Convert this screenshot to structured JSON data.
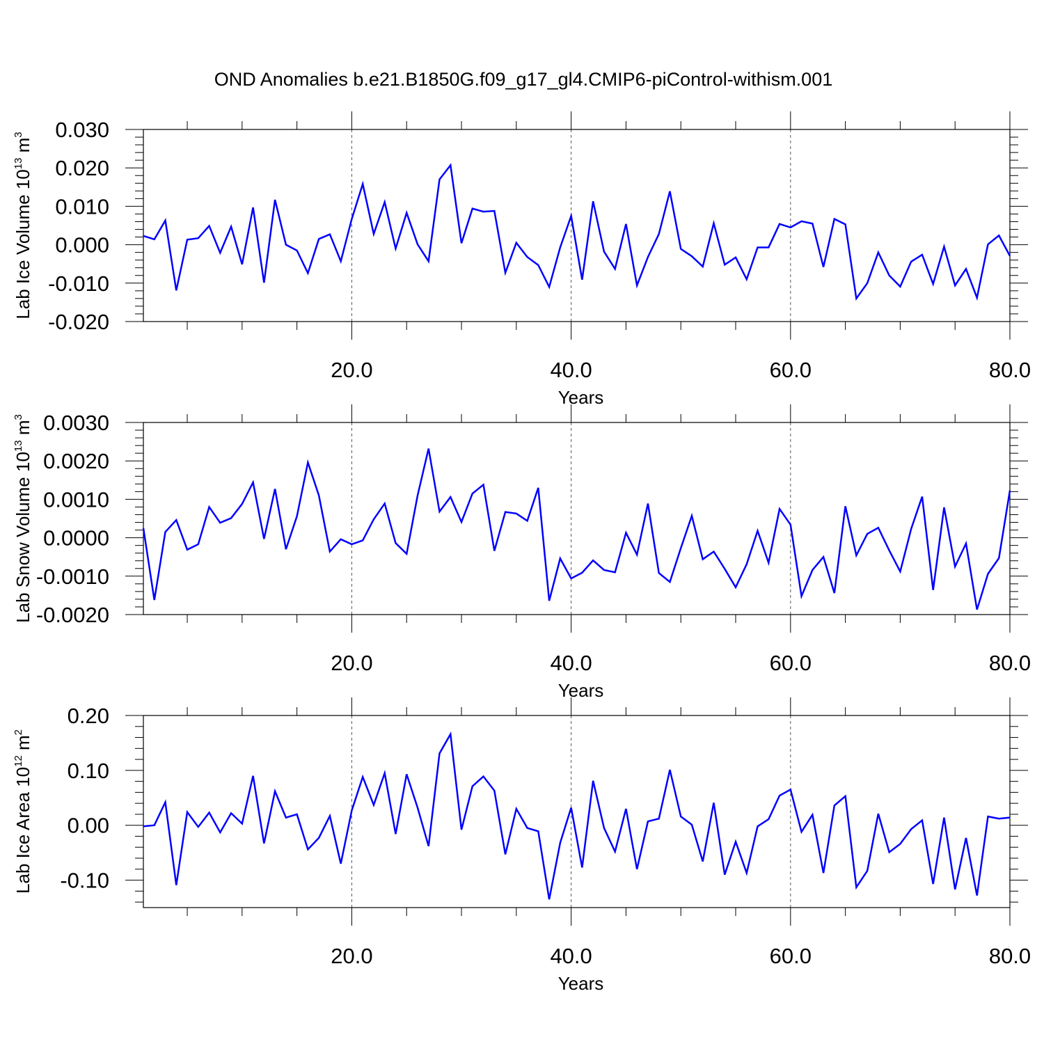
{
  "title": "OND Anomalies b.e21.B1850G.f09_g17_gl4.CMIP6-piControl-withism.001",
  "colors": {
    "line": "#0000ff",
    "axis": "#000000",
    "grid": "#555555",
    "background": "#ffffff"
  },
  "chart_data": [
    {
      "type": "line",
      "xlabel": "Years",
      "ylabel": {
        "main": "Lab Ice Volume 10",
        "exponent": "13",
        "unit": " m",
        "unit_exponent": "3"
      },
      "xlim": [
        1,
        80
      ],
      "ylim": [
        -0.02,
        0.03
      ],
      "xticks": [
        20,
        40,
        60,
        80
      ],
      "xtick_labels": [
        "20.0",
        "40.0",
        "60.0",
        "80.0"
      ],
      "yticks": [
        -0.02,
        -0.01,
        0.0,
        0.01,
        0.02,
        0.03
      ],
      "ytick_labels": [
        "-0.020",
        "-0.010",
        "0.000",
        "0.010",
        "0.020",
        "0.030"
      ],
      "x_minor_step": 5,
      "y_minor_step": 0.002,
      "grid": "vertical-dashed-at-major-x",
      "series": [
        {
          "x": [
            1,
            2,
            3,
            4,
            5,
            6,
            7,
            8,
            9,
            10,
            11,
            12,
            13,
            14,
            15,
            16,
            17,
            18,
            19,
            20,
            21,
            22,
            23,
            24,
            25,
            26,
            27,
            28,
            29,
            30,
            31,
            32,
            33,
            34,
            35,
            36,
            37,
            38,
            39,
            40,
            41,
            42,
            43,
            44,
            45,
            46,
            47,
            48,
            49,
            50,
            51,
            52,
            53,
            54,
            55,
            56,
            57,
            58,
            59,
            60,
            61,
            62,
            63,
            64,
            65,
            66,
            67,
            68,
            69,
            70,
            71,
            72,
            73,
            74,
            75,
            76,
            77,
            78,
            79,
            80
          ],
          "values": [
            0.0023,
            0.0014,
            0.0063,
            -0.0119,
            0.0013,
            0.0017,
            0.0049,
            -0.0021,
            0.0047,
            -0.0051,
            0.0097,
            -0.0099,
            0.0117,
            0.0,
            -0.0015,
            -0.0074,
            0.0015,
            0.0027,
            -0.0043,
            0.0067,
            0.0158,
            0.0028,
            0.0111,
            -0.001,
            0.0083,
            0.0001,
            -0.0043,
            0.017,
            0.0207,
            0.0004,
            0.0094,
            0.0086,
            0.0088,
            -0.0073,
            0.0005,
            -0.0032,
            -0.0053,
            -0.011,
            -0.0007,
            0.0075,
            -0.0091,
            0.0113,
            -0.0018,
            -0.0063,
            0.0054,
            -0.0106,
            -0.0032,
            0.0028,
            0.0139,
            -0.0011,
            -0.003,
            -0.0057,
            0.0056,
            -0.0052,
            -0.0033,
            -0.009,
            -0.0007,
            -0.0007,
            0.0054,
            0.0045,
            0.0061,
            0.0055,
            -0.0058,
            0.0067,
            0.0053,
            -0.014,
            -0.01,
            -0.002,
            -0.008,
            -0.0109,
            -0.0044,
            -0.0026,
            -0.0102,
            -0.0005,
            -0.0106,
            -0.0063,
            -0.0138,
            0.0001,
            0.0024,
            -0.0029
          ]
        }
      ]
    },
    {
      "type": "line",
      "xlabel": "Years",
      "ylabel": {
        "main": "Lab Snow Volume 10",
        "exponent": "13",
        "unit": " m",
        "unit_exponent": "3"
      },
      "xlim": [
        1,
        80
      ],
      "ylim": [
        -0.002,
        0.003
      ],
      "xticks": [
        20,
        40,
        60,
        80
      ],
      "xtick_labels": [
        "20.0",
        "40.0",
        "60.0",
        "80.0"
      ],
      "yticks": [
        -0.002,
        -0.001,
        0.0,
        0.001,
        0.002,
        0.003
      ],
      "ytick_labels": [
        "-0.0020",
        "-0.0010",
        "0.0000",
        "0.0010",
        "0.0020",
        "0.0030"
      ],
      "x_minor_step": 5,
      "y_minor_step": 0.0002,
      "grid": "vertical-dashed-at-major-x",
      "series": [
        {
          "x": [
            1,
            2,
            3,
            4,
            5,
            6,
            7,
            8,
            9,
            10,
            11,
            12,
            13,
            14,
            15,
            16,
            17,
            18,
            19,
            20,
            21,
            22,
            23,
            24,
            25,
            26,
            27,
            28,
            29,
            30,
            31,
            32,
            33,
            34,
            35,
            36,
            37,
            38,
            39,
            40,
            41,
            42,
            43,
            44,
            45,
            46,
            47,
            48,
            49,
            50,
            51,
            52,
            53,
            54,
            55,
            56,
            57,
            58,
            59,
            60,
            61,
            62,
            63,
            64,
            65,
            66,
            67,
            68,
            69,
            70,
            71,
            72,
            73,
            74,
            75,
            76,
            77,
            78,
            79,
            80
          ],
          "values": [
            0.00025,
            -0.00162,
            0.00015,
            0.00046,
            -0.00031,
            -0.00017,
            0.0008,
            0.00039,
            0.00051,
            0.00088,
            0.00144,
            -3e-05,
            0.00127,
            -0.0003,
            0.00056,
            0.00196,
            0.0011,
            -0.00036,
            -4e-05,
            -0.00017,
            -7e-05,
            0.00048,
            0.00089,
            -0.00014,
            -0.00042,
            0.0011,
            0.00232,
            0.00068,
            0.00106,
            0.00041,
            0.00115,
            0.00138,
            -0.00034,
            0.00067,
            0.00063,
            0.00044,
            0.0013,
            -0.00164,
            -0.00054,
            -0.00106,
            -0.00091,
            -0.00059,
            -0.00084,
            -0.0009,
            0.00013,
            -0.00044,
            0.00089,
            -0.00092,
            -0.00115,
            -0.00027,
            0.00057,
            -0.00056,
            -0.00036,
            -0.00081,
            -0.00129,
            -0.00069,
            0.00018,
            -0.00065,
            0.00075,
            0.00034,
            -0.00152,
            -0.00084,
            -0.0005,
            -0.00144,
            0.00082,
            -0.00046,
            0.0001,
            0.00026,
            -0.00033,
            -0.00088,
            0.00023,
            0.00107,
            -0.00136,
            0.00079,
            -0.00075,
            -0.00015,
            -0.00187,
            -0.00094,
            -0.00053,
            0.00123
          ]
        }
      ]
    },
    {
      "type": "line",
      "xlabel": "Years",
      "ylabel": {
        "main": "Lab Ice Area 10",
        "exponent": "12",
        "unit": " m",
        "unit_exponent": "2"
      },
      "xlim": [
        1,
        80
      ],
      "ylim": [
        -0.15,
        0.2
      ],
      "xticks": [
        20,
        40,
        60,
        80
      ],
      "xtick_labels": [
        "20.0",
        "40.0",
        "60.0",
        "80.0"
      ],
      "yticks": [
        -0.1,
        0.0,
        0.1,
        0.2
      ],
      "ytick_labels": [
        "-0.10",
        "0.00",
        "0.10",
        "0.20"
      ],
      "x_minor_step": 5,
      "y_minor_step": 0.02,
      "grid": "vertical-dashed-at-major-x",
      "series": [
        {
          "x": [
            1,
            2,
            3,
            4,
            5,
            6,
            7,
            8,
            9,
            10,
            11,
            12,
            13,
            14,
            15,
            16,
            17,
            18,
            19,
            20,
            21,
            22,
            23,
            24,
            25,
            26,
            27,
            28,
            29,
            30,
            31,
            32,
            33,
            34,
            35,
            36,
            37,
            38,
            39,
            40,
            41,
            42,
            43,
            44,
            45,
            46,
            47,
            48,
            49,
            50,
            51,
            52,
            53,
            54,
            55,
            56,
            57,
            58,
            59,
            60,
            61,
            62,
            63,
            64,
            65,
            66,
            67,
            68,
            69,
            70,
            71,
            72,
            73,
            74,
            75,
            76,
            77,
            78,
            79,
            80
          ],
          "values": [
            -0.002,
            0.0,
            0.042,
            -0.109,
            0.024,
            -0.003,
            0.023,
            -0.013,
            0.022,
            0.003,
            0.09,
            -0.033,
            0.062,
            0.014,
            0.02,
            -0.044,
            -0.023,
            0.017,
            -0.07,
            0.027,
            0.088,
            0.037,
            0.095,
            -0.016,
            0.093,
            0.032,
            -0.038,
            0.131,
            0.166,
            -0.008,
            0.071,
            0.089,
            0.063,
            -0.053,
            0.03,
            -0.005,
            -0.011,
            -0.135,
            -0.032,
            0.032,
            -0.077,
            0.081,
            -0.005,
            -0.048,
            0.03,
            -0.08,
            0.007,
            0.012,
            0.101,
            0.016,
            0.001,
            -0.066,
            0.041,
            -0.09,
            -0.03,
            -0.087,
            -0.002,
            0.011,
            0.054,
            0.065,
            -0.012,
            0.019,
            -0.087,
            0.036,
            0.053,
            -0.113,
            -0.083,
            0.021,
            -0.049,
            -0.034,
            -0.007,
            0.009,
            -0.107,
            0.014,
            -0.117,
            -0.023,
            -0.128,
            0.016,
            0.012,
            0.014
          ]
        }
      ]
    }
  ]
}
